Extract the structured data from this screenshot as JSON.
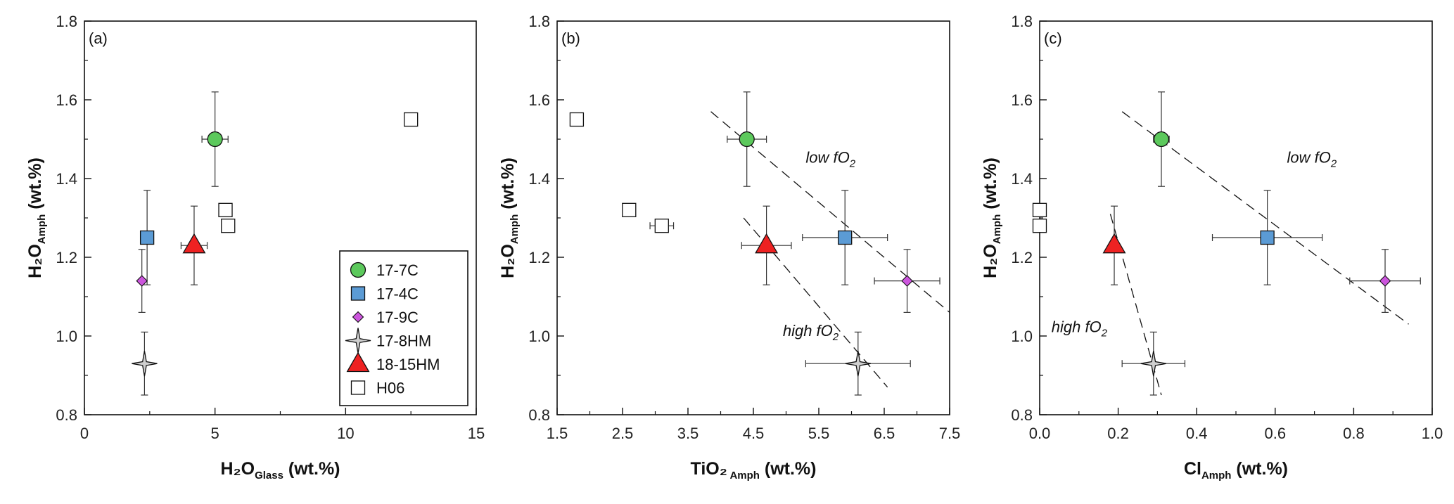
{
  "chart_data": [
    {
      "type": "scatter",
      "panel_label": "(a)",
      "xlabel": "H₂O",
      "xlabel_sub": "Glass",
      "xlabel_tail": " (wt.%)",
      "ylabel": "H₂O",
      "ylabel_sub": "Amph",
      "ylabel_tail": " (wt.%)",
      "xlim": [
        0,
        15
      ],
      "ylim": [
        0.8,
        1.8
      ],
      "xticks": [
        0,
        5,
        10,
        15
      ],
      "xtick_labels": [
        "0",
        "5",
        "10",
        "15"
      ],
      "yticks": [
        0.8,
        1.0,
        1.2,
        1.4,
        1.6,
        1.8
      ],
      "ytick_labels": [
        "0.8",
        "1.0",
        "1.2",
        "1.4",
        "1.6",
        "1.8"
      ],
      "points": [
        {
          "series": "17-7C",
          "x": 5.0,
          "y": 1.5,
          "xerr": 0.5,
          "yerr": 0.12
        },
        {
          "series": "17-4C",
          "x": 2.4,
          "y": 1.25,
          "xerr": 0,
          "yerr": 0.12
        },
        {
          "series": "17-9C",
          "x": 2.2,
          "y": 1.14,
          "xerr": 0,
          "yerr": 0.08
        },
        {
          "series": "17-8HM",
          "x": 2.3,
          "y": 0.93,
          "xerr": 0,
          "yerr": 0.08
        },
        {
          "series": "18-15HM",
          "x": 4.2,
          "y": 1.23,
          "xerr": 0.5,
          "yerr": 0.1
        },
        {
          "series": "H06",
          "x": 12.5,
          "y": 1.55,
          "xerr": 0,
          "yerr": 0
        },
        {
          "series": "H06",
          "x": 5.4,
          "y": 1.32,
          "xerr": 0,
          "yerr": 0
        },
        {
          "series": "H06",
          "x": 5.5,
          "y": 1.28,
          "xerr": 0,
          "yerr": 0
        }
      ],
      "trendlines": [],
      "annotations": []
    },
    {
      "type": "scatter",
      "panel_label": "(b)",
      "xlabel": "TiO₂",
      "xlabel_sub": " Amph",
      "xlabel_tail": " (wt.%)",
      "ylabel": "H₂O",
      "ylabel_sub": "Amph",
      "ylabel_tail": " (wt.%)",
      "xlim": [
        1.5,
        7.5
      ],
      "ylim": [
        0.8,
        1.8
      ],
      "xticks": [
        1.5,
        2.5,
        3.5,
        4.5,
        5.5,
        6.5,
        7.5
      ],
      "xtick_labels": [
        "1.5",
        "2.5",
        "3.5",
        "4.5",
        "5.5",
        "6.5",
        "7.5"
      ],
      "yticks": [
        0.8,
        1.0,
        1.2,
        1.4,
        1.6,
        1.8
      ],
      "ytick_labels": [
        "0.8",
        "1.0",
        "1.2",
        "1.4",
        "1.6",
        "1.8"
      ],
      "points": [
        {
          "series": "17-7C",
          "x": 4.4,
          "y": 1.5,
          "xerr": 0.3,
          "yerr": 0.12
        },
        {
          "series": "17-4C",
          "x": 5.9,
          "y": 1.25,
          "xerr": 0.65,
          "yerr": 0.12
        },
        {
          "series": "17-9C",
          "x": 6.85,
          "y": 1.14,
          "xerr": 0.5,
          "yerr": 0.08
        },
        {
          "series": "17-8HM",
          "x": 6.1,
          "y": 0.93,
          "xerr": 0.8,
          "yerr": 0.08
        },
        {
          "series": "18-15HM",
          "x": 4.7,
          "y": 1.23,
          "xerr": 0.38,
          "yerr": 0.1
        },
        {
          "series": "H06",
          "x": 1.8,
          "y": 1.55,
          "xerr": 0,
          "yerr": 0
        },
        {
          "series": "H06",
          "x": 2.6,
          "y": 1.32,
          "xerr": 0,
          "yerr": 0
        },
        {
          "series": "H06",
          "x": 3.1,
          "y": 1.28,
          "xerr": 0.18,
          "yerr": 0
        }
      ],
      "trendlines": [
        {
          "name": "low fO2",
          "x": [
            3.85,
            7.5
          ],
          "y": [
            1.57,
            1.06
          ]
        },
        {
          "name": "high fO2",
          "x": [
            4.35,
            6.55
          ],
          "y": [
            1.3,
            0.87
          ]
        }
      ],
      "annotations": [
        {
          "main": "low fO",
          "sub": "2",
          "x": 5.3,
          "y": 1.44
        },
        {
          "main": "high fO",
          "sub": "2",
          "x": 4.95,
          "y": 1.0
        }
      ]
    },
    {
      "type": "scatter",
      "panel_label": "(c)",
      "xlabel": "Cl",
      "xlabel_sub": "Amph",
      "xlabel_tail": " (wt.%)",
      "ylabel": "H₂O",
      "ylabel_sub": "Amph",
      "ylabel_tail": " (wt.%)",
      "xlim": [
        0.0,
        1.0
      ],
      "ylim": [
        0.8,
        1.8
      ],
      "xticks": [
        0.0,
        0.2,
        0.4,
        0.6,
        0.8,
        1.0
      ],
      "xtick_labels": [
        "0.0",
        "0.2",
        "0.4",
        "0.6",
        "0.8",
        "1.0"
      ],
      "yticks": [
        0.8,
        1.0,
        1.2,
        1.4,
        1.6,
        1.8
      ],
      "ytick_labels": [
        "0.8",
        "1.0",
        "1.2",
        "1.4",
        "1.6",
        "1.8"
      ],
      "points": [
        {
          "series": "17-7C",
          "x": 0.31,
          "y": 1.5,
          "xerr": 0.02,
          "yerr": 0.12
        },
        {
          "series": "17-4C",
          "x": 0.58,
          "y": 1.25,
          "xerr": 0.14,
          "yerr": 0.12
        },
        {
          "series": "17-9C",
          "x": 0.88,
          "y": 1.14,
          "xerr": 0.09,
          "yerr": 0.08
        },
        {
          "series": "17-8HM",
          "x": 0.29,
          "y": 0.93,
          "xerr": 0.08,
          "yerr": 0.08
        },
        {
          "series": "18-15HM",
          "x": 0.19,
          "y": 1.23,
          "xerr": 0,
          "yerr": 0.1
        },
        {
          "series": "H06",
          "x": 0.0,
          "y": 1.32,
          "xerr": 0,
          "yerr": 0
        },
        {
          "series": "H06",
          "x": 0.0,
          "y": 1.28,
          "xerr": 0,
          "yerr": 0
        }
      ],
      "trendlines": [
        {
          "name": "low fO2",
          "x": [
            0.21,
            0.94
          ],
          "y": [
            1.57,
            1.03
          ]
        },
        {
          "name": "high fO2",
          "x": [
            0.18,
            0.31
          ],
          "y": [
            1.31,
            0.85
          ]
        }
      ],
      "annotations": [
        {
          "main": "low fO",
          "sub": "2",
          "x": 0.63,
          "y": 1.44
        },
        {
          "main": "high fO",
          "sub": "2",
          "x": 0.03,
          "y": 1.01
        }
      ]
    }
  ],
  "legend": {
    "location": "lower-right of panel (a)",
    "entries": [
      {
        "name": "17-7C",
        "marker": "circle",
        "color": "#5cc95c"
      },
      {
        "name": "17-4C",
        "marker": "square",
        "color": "#5b9bd5"
      },
      {
        "name": "17-9C",
        "marker": "diamond",
        "color": "#cc55dd"
      },
      {
        "name": "17-8HM",
        "marker": "star4",
        "color": "#cfcfcf"
      },
      {
        "name": "18-15HM",
        "marker": "triangle",
        "color": "#ee2222"
      },
      {
        "name": "H06",
        "marker": "open-square",
        "color": "#ffffff"
      }
    ]
  }
}
